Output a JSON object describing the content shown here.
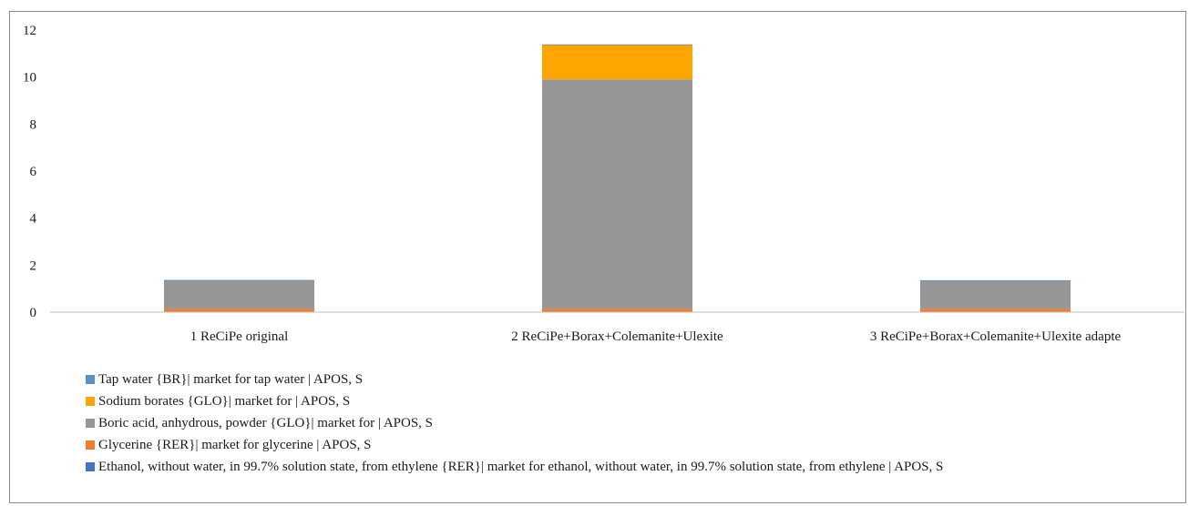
{
  "chart_data": {
    "type": "bar",
    "stacked": true,
    "categories": [
      "1 ReCiPe original",
      "2 ReCiPe+Borax+Colemanite+Ulexite",
      "3 ReCiPe+Borax+Colemanite+Ulexite adapte"
    ],
    "series": [
      {
        "name": "Ethanol, without water, in 99.7% solution state, from ethylene {RER}| market for ethanol, without water, in 99.7% solution state, from ethylene | APOS, S",
        "color": "#4472c4",
        "values": [
          0.02,
          0.02,
          0.02
        ]
      },
      {
        "name": "Glycerine {RER}| market for glycerine | APOS, S",
        "color": "#ed7d31",
        "values": [
          0.12,
          0.12,
          0.12
        ]
      },
      {
        "name": "Boric acid, anhydrous, powder {GLO}| market for | APOS, S",
        "color": "#969696",
        "values": [
          1.22,
          9.76,
          1.21
        ]
      },
      {
        "name": "Sodium borates {GLO}| market for | APOS, S",
        "color": "#ffa500",
        "values": [
          0.0,
          1.48,
          0.0
        ]
      },
      {
        "name": "Tap water {BR}| market for tap water | APOS, S",
        "color": "#5b8fc9",
        "values": [
          0.01,
          0.01,
          0.01
        ]
      }
    ],
    "legend_order": [
      4,
      3,
      2,
      1,
      0
    ],
    "yticks": [
      "0",
      "2",
      "4",
      "6",
      "8",
      "10",
      "12"
    ],
    "ylim": [
      0,
      12
    ],
    "grid": false,
    "legend_position": "bottom-left"
  }
}
